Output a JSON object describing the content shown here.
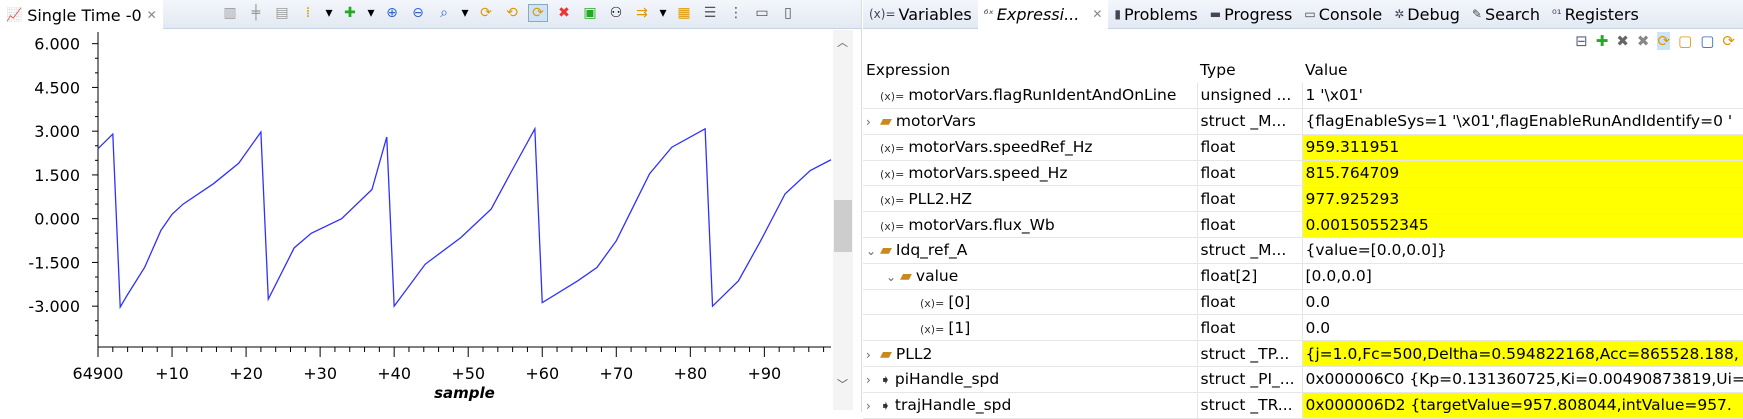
{
  "left_panel": {
    "tab_title": "Single Time -0",
    "toolbar_icons": [
      "align-icon",
      "center-icon",
      "fit-icon",
      "marker-icon",
      "add-graph-icon",
      "zoom-in-icon",
      "zoom-out-icon",
      "zoom-fit-icon",
      "refresh-icon",
      "hex-refresh-icon",
      "continuous-refresh-icon",
      "remove-icon",
      "export-icon",
      "binoculars-icon",
      "sync-icon",
      "lock-icon",
      "properties-icon",
      "menu-icon",
      "minimize-icon",
      "maximize-icon"
    ]
  },
  "chart_data": {
    "type": "line",
    "xlabel": "sample",
    "ylabel": "",
    "xlim": [
      64900,
      64999
    ],
    "ylim": [
      -4.4,
      6.4
    ],
    "x_tick_labels": [
      "64900",
      "+10",
      "+20",
      "+30",
      "+40",
      "+50",
      "+60",
      "+70",
      "+80",
      "+90"
    ],
    "x_ticks": [
      64900,
      64910,
      64920,
      64930,
      64940,
      64950,
      64960,
      64970,
      64980,
      64990
    ],
    "y_tick_labels": [
      "6.000",
      "4.500",
      "3.000",
      "1.500",
      "0.000",
      "-1.500",
      "-3.000"
    ],
    "y_ticks": [
      6,
      4.5,
      3,
      1.5,
      0,
      -1.5,
      -3
    ],
    "line_color": "#3030ff",
    "series": [
      {
        "x": [
          64900,
          64902,
          64903,
          64904,
          64906.3,
          64908.5,
          64910,
          64911.5,
          64915.6,
          64919,
          64922,
          64923,
          64926.5,
          64928.8,
          64932.9,
          64937,
          64939,
          64940,
          64944.2,
          64949,
          64953.1,
          64955.8,
          64959,
          64960,
          64964.8,
          64967.4,
          64970,
          64974.5,
          64977.5,
          64982,
          64983,
          64986.5,
          64989.5,
          64992.8,
          64996.2,
          64999
        ],
        "y": [
          2.4,
          2.9,
          -3.03,
          -2.6,
          -1.67,
          -0.4,
          0.15,
          0.5,
          1.2,
          1.9,
          2.97,
          -2.76,
          -1.0,
          -0.5,
          0.0,
          1.0,
          2.8,
          -3.0,
          -1.56,
          -0.65,
          0.33,
          1.6,
          3.08,
          -2.88,
          -2.13,
          -1.67,
          -0.76,
          1.54,
          2.45,
          3.08,
          -3.0,
          -2.13,
          -0.76,
          0.85,
          1.65,
          2.02
        ]
      }
    ]
  },
  "right_panel": {
    "tabs": [
      {
        "icon": "(x)=",
        "label": "Variables"
      },
      {
        "icon": "⁶ˣ",
        "label": "Expressi...",
        "active": true
      },
      {
        "icon": "▮",
        "label": "Problems"
      },
      {
        "icon": "▬",
        "label": "Progress"
      },
      {
        "icon": "▭",
        "label": "Console"
      },
      {
        "icon": "✲",
        "label": "Debug"
      },
      {
        "icon": "✎",
        "label": "Search"
      },
      {
        "icon": "⁰¹",
        "label": "Registers"
      }
    ],
    "columns": [
      "Expression",
      "Type",
      "Value"
    ],
    "highlight_color": "#ffff00",
    "rows": [
      {
        "indent": 0,
        "twisty": "",
        "icon": "var",
        "name": "motorVars.flagRunIdentAndOnLine",
        "type": "unsigned ...",
        "value": "1 '\\x01'",
        "hl": false
      },
      {
        "indent": 0,
        "twisty": "›",
        "icon": "struct",
        "name": "motorVars",
        "type": "struct _M...",
        "value": "{flagEnableSys=1 '\\x01',flagEnableRunAndIdentify=0 '",
        "hl": false
      },
      {
        "indent": 0,
        "twisty": "",
        "icon": "var",
        "name": "motorVars.speedRef_Hz",
        "type": "float",
        "value": "959.311951",
        "hl": true
      },
      {
        "indent": 0,
        "twisty": "",
        "icon": "var",
        "name": "motorVars.speed_Hz",
        "type": "float",
        "value": "815.764709",
        "hl": true
      },
      {
        "indent": 0,
        "twisty": "",
        "icon": "var",
        "name": "PLL2.HZ",
        "type": "float",
        "value": "977.925293",
        "hl": true
      },
      {
        "indent": 0,
        "twisty": "",
        "icon": "var",
        "name": "motorVars.flux_Wb",
        "type": "float",
        "value": "0.00150552345",
        "hl": true
      },
      {
        "indent": 0,
        "twisty": "⌄",
        "icon": "struct",
        "name": "Idq_ref_A",
        "type": "struct _M...",
        "value": "{value=[0.0,0.0]}",
        "hl": false
      },
      {
        "indent": 1,
        "twisty": "⌄",
        "icon": "struct",
        "name": "value",
        "type": "float[2]",
        "value": "[0.0,0.0]",
        "hl": false
      },
      {
        "indent": 2,
        "twisty": "",
        "icon": "var",
        "name": "[0]",
        "type": "float",
        "value": "0.0",
        "hl": false
      },
      {
        "indent": 2,
        "twisty": "",
        "icon": "var",
        "name": "[1]",
        "type": "float",
        "value": "0.0",
        "hl": false
      },
      {
        "indent": 0,
        "twisty": "›",
        "icon": "struct",
        "name": "PLL2",
        "type": "struct _TP...",
        "value": "{j=1.0,Fc=500,Deltha=0.594822168,Acc=865528.188,",
        "hl": true
      },
      {
        "indent": 0,
        "twisty": "›",
        "icon": "pointer",
        "name": "piHandle_spd",
        "type": "struct _PI_...",
        "value": "0x000006C0 {Kp=0.131360725,Ki=0.00490873819,Ui=",
        "hl": false
      },
      {
        "indent": 0,
        "twisty": "›",
        "icon": "pointer",
        "name": "trajHandle_spd",
        "type": "struct _TR...",
        "value": "0x000006D2 {targetValue=957.808044,intValue=957.",
        "hl": true
      }
    ]
  }
}
